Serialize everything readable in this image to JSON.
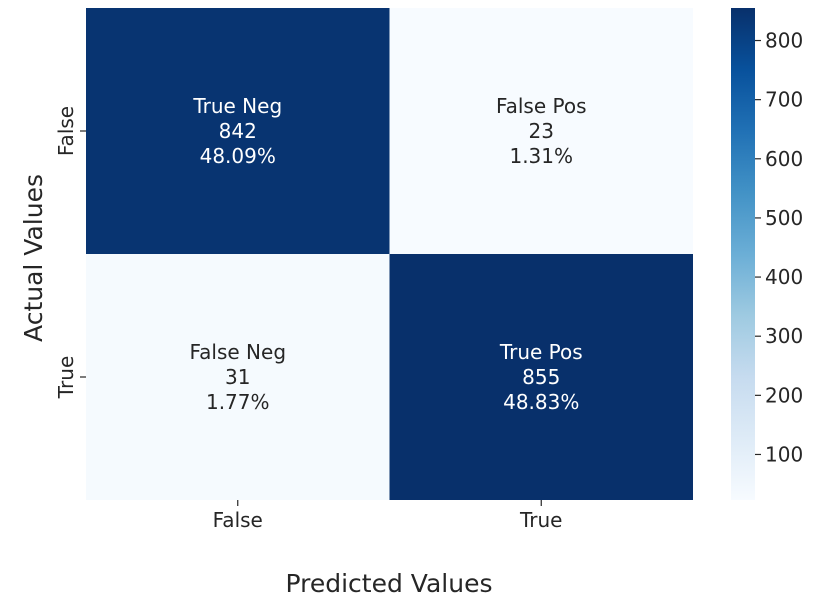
{
  "chart_data": {
    "type": "heatmap",
    "title": "",
    "xlabel": "Predicted Values",
    "ylabel": "Actual Values",
    "x_categories": [
      "False",
      "True"
    ],
    "y_categories": [
      "False",
      "True"
    ],
    "cells": [
      [
        {
          "label": "True Neg",
          "value": 842,
          "percent": "48.09%"
        },
        {
          "label": "False Pos",
          "value": 23,
          "percent": "1.31%"
        }
      ],
      [
        {
          "label": "False Neg",
          "value": 31,
          "percent": "1.77%"
        },
        {
          "label": "True Pos",
          "value": 855,
          "percent": "48.83%"
        }
      ]
    ],
    "colormap": "Blues",
    "color_low": "#f7fbff",
    "color_high": "#08306b",
    "colorbar": {
      "vmin": 23,
      "vmax": 855,
      "ticks": [
        100,
        200,
        300,
        400,
        500,
        600,
        700,
        800
      ]
    }
  }
}
